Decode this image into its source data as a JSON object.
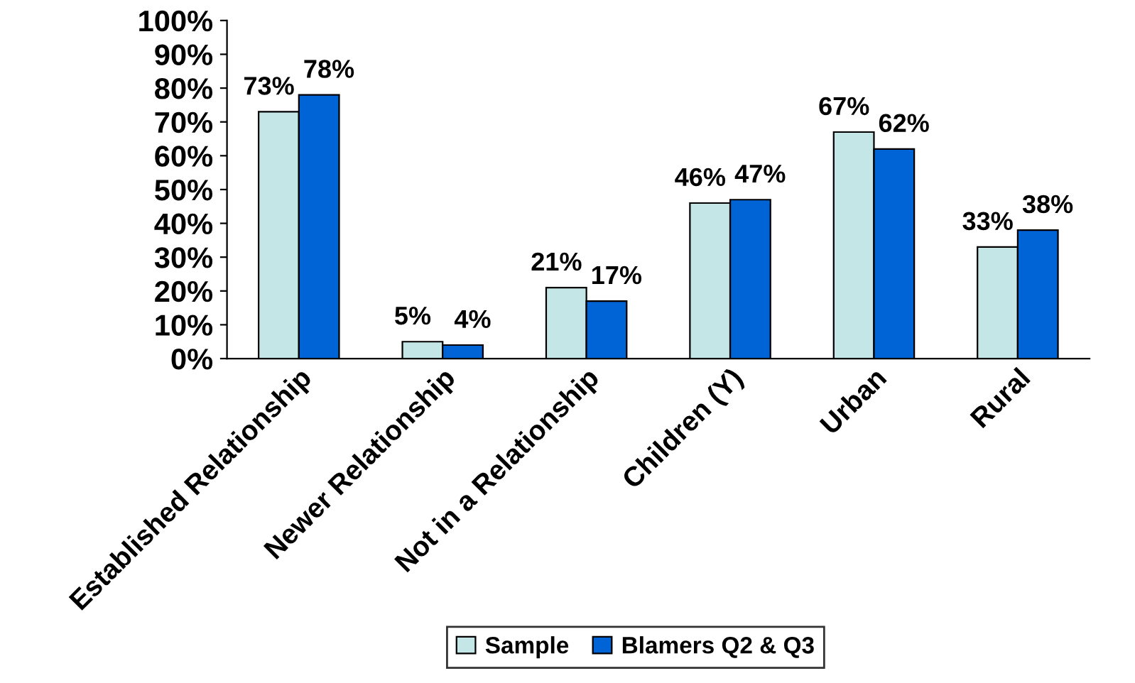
{
  "chart_data": {
    "type": "bar",
    "categories": [
      "Established Relationship",
      "Newer Relationship",
      "Not in a Relationship",
      "Children (Y)",
      "Urban",
      "Rural"
    ],
    "series": [
      {
        "name": "Sample",
        "color": "#c4e6e6",
        "values": [
          73,
          5,
          21,
          46,
          67,
          33
        ],
        "value_labels": [
          "73%",
          "5%",
          "21%",
          "46%",
          "67%",
          "33%"
        ]
      },
      {
        "name": "Blamers Q2 & Q3",
        "color": "#0063d6",
        "values": [
          78,
          4,
          17,
          47,
          62,
          38
        ],
        "value_labels": [
          "78%",
          "4%",
          "17%",
          "47%",
          "62%",
          "38%"
        ]
      }
    ],
    "ylim": [
      0,
      100
    ],
    "yticks": [
      {
        "value": 0,
        "label": "0%"
      },
      {
        "value": 10,
        "label": "10%"
      },
      {
        "value": 20,
        "label": "20%"
      },
      {
        "value": 30,
        "label": "30%"
      },
      {
        "value": 40,
        "label": "40%"
      },
      {
        "value": 50,
        "label": "50%"
      },
      {
        "value": 60,
        "label": "60%"
      },
      {
        "value": 70,
        "label": "70%"
      },
      {
        "value": 80,
        "label": "80%"
      },
      {
        "value": 90,
        "label": "90%"
      },
      {
        "value": 100,
        "label": "100%"
      }
    ],
    "grid": false,
    "legend": "bottom"
  }
}
